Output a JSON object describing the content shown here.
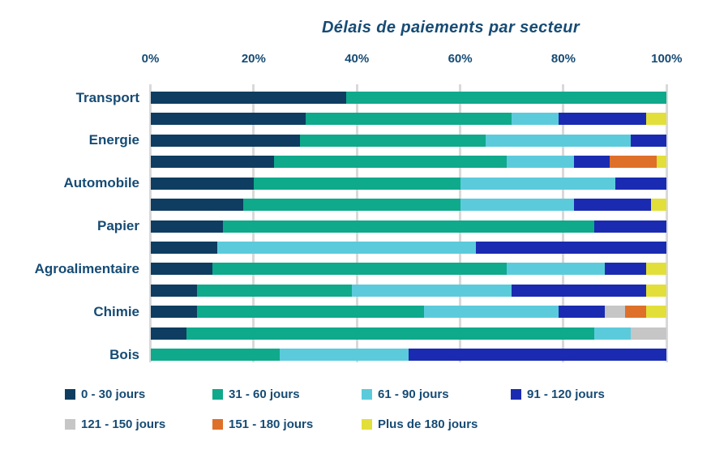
{
  "title": "Délais de paiements par secteur",
  "chart_data": {
    "type": "bar",
    "orientation": "horizontal",
    "stacked": true,
    "units": "percent",
    "title": "Délais de paiements par secteur",
    "x_axis": {
      "position": "top",
      "ticks": [
        "0%",
        "20%",
        "40%",
        "60%",
        "80%",
        "100%"
      ],
      "range": [
        0,
        100
      ],
      "gridlines": true
    },
    "series": [
      {
        "name": "0 - 30 jours",
        "color": "#0E3D61"
      },
      {
        "name": "31 - 60 jours",
        "color": "#0FA98B"
      },
      {
        "name": "61 - 90 jours",
        "color": "#5BCBDC"
      },
      {
        "name": "91 - 120 jours",
        "color": "#1A2BB1"
      },
      {
        "name": "121 - 150 jours",
        "color": "#C6C6C6"
      },
      {
        "name": "151 - 180 jours",
        "color": "#DE7029"
      },
      {
        "name": "Plus de 180 jours",
        "color": "#E2DF3A"
      }
    ],
    "rows": [
      {
        "label": "Transport",
        "values": [
          38,
          62,
          0,
          0,
          0,
          0,
          0
        ]
      },
      {
        "label": "",
        "values": [
          30,
          40,
          9,
          17,
          0,
          0,
          4
        ]
      },
      {
        "label": "Energie",
        "values": [
          29,
          36,
          28,
          7,
          0,
          0,
          0
        ]
      },
      {
        "label": "",
        "values": [
          24,
          45,
          13,
          7,
          0,
          9,
          2
        ]
      },
      {
        "label": "Automobile",
        "values": [
          20,
          40,
          30,
          10,
          0,
          0,
          0
        ]
      },
      {
        "label": "",
        "values": [
          18,
          42,
          22,
          15,
          0,
          0,
          3
        ]
      },
      {
        "label": "Papier",
        "values": [
          14,
          72,
          0,
          14,
          0,
          0,
          0
        ]
      },
      {
        "label": "",
        "values": [
          13,
          0,
          50,
          37,
          0,
          0,
          0
        ]
      },
      {
        "label": "Agroalimentaire",
        "values": [
          12,
          57,
          19,
          8,
          0,
          0,
          4
        ]
      },
      {
        "label": "",
        "values": [
          9,
          30,
          31,
          26,
          0,
          0,
          4
        ]
      },
      {
        "label": "Chimie",
        "values": [
          9,
          44,
          26,
          9,
          4,
          4,
          4
        ]
      },
      {
        "label": "",
        "values": [
          7,
          79,
          7,
          0,
          7,
          0,
          0
        ]
      },
      {
        "label": "Bois",
        "values": [
          0,
          25,
          25,
          50,
          0,
          0,
          0
        ]
      }
    ],
    "legend_position": "bottom"
  },
  "style": {
    "text_color": "#164B74",
    "grid_color": "#D9D9D9",
    "background": "#FFFFFF"
  }
}
